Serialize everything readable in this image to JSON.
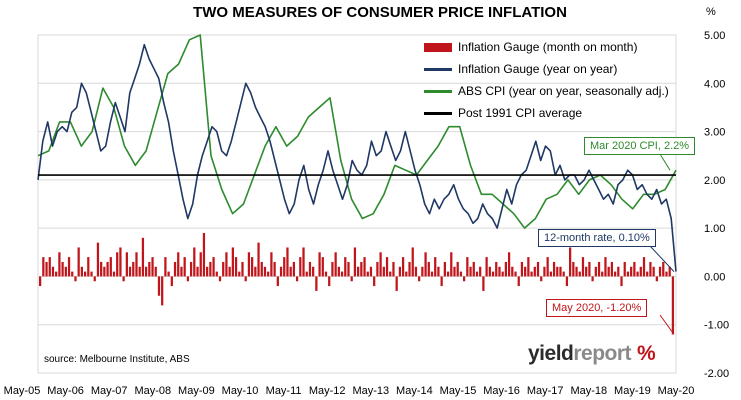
{
  "chart_data": {
    "type": "bar+line",
    "title": "TWO MEASURES OF CONSUMER PRICE INFLATION",
    "unit_label": "%",
    "source": "source: Melbourne Institute, ABS",
    "yaxis": {
      "side": "right",
      "ylim": [
        -2.0,
        5.0
      ],
      "ticks": [
        "5.00",
        "4.00",
        "3.00",
        "2.00",
        "1.00",
        "0.00",
        "-1.00",
        "-2.00"
      ]
    },
    "xaxis": {
      "tick_labels": [
        "May-05",
        "May-06",
        "May-07",
        "May-08",
        "May-09",
        "May-10",
        "May-11",
        "May-12",
        "May-13",
        "May-14",
        "May-15",
        "May-16",
        "May-17",
        "May-18",
        "May-19",
        "May-20"
      ]
    },
    "grid": "horizontal",
    "legend_position": "top-right",
    "colors": {
      "bars": "#c0151a",
      "gauge_yoy": "#1f3864",
      "abs_cpi": "#2e8b2e",
      "average": "#000000"
    },
    "series": [
      {
        "name": "Inflation Gauge (month on month)",
        "kind": "bar",
        "frequency": "monthly",
        "values": [
          -0.2,
          0.4,
          0.3,
          0.4,
          0.2,
          0.1,
          0.5,
          0.3,
          0.2,
          0.4,
          0.1,
          -0.1,
          0.6,
          0.2,
          0.1,
          0.4,
          0.1,
          -0.1,
          0.7,
          0.3,
          0.2,
          0.3,
          0.4,
          0.1,
          0.5,
          0.6,
          -0.1,
          0.5,
          0.2,
          0.3,
          0.5,
          0.2,
          0.8,
          0.2,
          0.3,
          0.4,
          0.2,
          -0.4,
          -0.6,
          0.4,
          0.1,
          -0.2,
          0.3,
          0.5,
          0.2,
          0.4,
          -0.1,
          0.3,
          0.6,
          0.2,
          0.5,
          0.9,
          0.2,
          0.3,
          0.4,
          0.1,
          -0.1,
          0.3,
          0.5,
          0.2,
          0.6,
          0.4,
          0.1,
          0.3,
          -0.1,
          0.5,
          0.4,
          0.2,
          0.7,
          0.3,
          0.2,
          0.1,
          0.5,
          0.3,
          -0.2,
          0.2,
          0.4,
          0.6,
          0.2,
          0.3,
          -0.1,
          0.4,
          0.6,
          0.1,
          0.3,
          0.2,
          -0.3,
          0.5,
          0.4,
          0.1,
          -0.2,
          0.3,
          0.5,
          0.2,
          0.1,
          0.4,
          0.3,
          -0.1,
          0.6,
          0.2,
          0.3,
          0.4,
          0.1,
          0.2,
          -0.2,
          0.3,
          0.5,
          0.2,
          0.4,
          0.1,
          0.3,
          -0.3,
          0.2,
          0.4,
          0.1,
          0.3,
          0.6,
          0.2,
          -0.1,
          0.2,
          0.5,
          0.3,
          0.1,
          0.4,
          0.2,
          -0.2,
          0.3,
          0.1,
          0.5,
          0.2,
          0.3,
          0.1,
          -0.1,
          0.4,
          0.2,
          0.3,
          0.1,
          0.2,
          -0.3,
          0.4,
          0.2,
          0.1,
          0.3,
          0.2,
          0.1,
          0.3,
          0.5,
          0.2,
          0.1,
          -0.2,
          0.3,
          0.2,
          0.4,
          0.1,
          0.2,
          0.3,
          -0.1,
          0.2,
          0.4,
          0.1,
          0.3,
          0.2,
          0.2,
          0.1,
          -0.2,
          0.6,
          0.3,
          0.2,
          0.1,
          0.4,
          0.2,
          0.3,
          -0.1,
          0.2,
          0.3,
          0.1,
          0.4,
          0.2,
          0.3,
          0.1,
          0.2,
          -0.2,
          0.3,
          0.1,
          0.2,
          0.3,
          0.1,
          0.2,
          0.4,
          0.1,
          0.3,
          0.2,
          -0.1,
          0.2,
          0.3,
          0.1,
          0.2,
          -1.2
        ]
      },
      {
        "name": "Inflation Gauge (year on year)",
        "kind": "line",
        "frequency": "monthly",
        "values": [
          2.0,
          2.8,
          3.2,
          2.7,
          3.0,
          3.1,
          3.0,
          3.4,
          3.5,
          4.0,
          3.8,
          3.4,
          3.0,
          2.6,
          2.7,
          3.2,
          3.6,
          3.3,
          3.0,
          3.8,
          4.1,
          4.4,
          4.8,
          4.5,
          4.3,
          4.1,
          3.6,
          3.2,
          2.6,
          2.1,
          1.6,
          1.2,
          1.5,
          2.1,
          2.5,
          2.8,
          3.1,
          3.0,
          2.6,
          2.5,
          2.8,
          3.2,
          3.6,
          4.0,
          3.8,
          3.5,
          3.3,
          3.1,
          2.8,
          2.4,
          2.0,
          1.6,
          1.3,
          1.5,
          2.0,
          2.3,
          1.8,
          1.5,
          1.9,
          2.2,
          2.6,
          2.2,
          1.9,
          1.6,
          1.9,
          2.4,
          2.2,
          2.1,
          2.3,
          2.8,
          2.5,
          2.6,
          3.0,
          2.7,
          2.4,
          2.6,
          3.0,
          2.6,
          2.2,
          1.9,
          1.5,
          1.3,
          1.6,
          1.4,
          1.6,
          1.7,
          1.9,
          1.6,
          1.4,
          1.3,
          1.1,
          1.2,
          1.5,
          1.3,
          1.2,
          1.0,
          1.4,
          1.8,
          1.5,
          1.9,
          2.1,
          2.2,
          2.5,
          2.8,
          2.4,
          2.7,
          2.6,
          2.1,
          2.3,
          2.0,
          2.1,
          2.1,
          1.9,
          2.0,
          2.2,
          2.0,
          1.8,
          1.6,
          1.7,
          1.5,
          1.9,
          2.0,
          2.2,
          2.1,
          1.8,
          1.9,
          1.7,
          1.6,
          1.8,
          1.5,
          1.6,
          1.2,
          0.1
        ]
      },
      {
        "name": "ABS CPI (year on year, seasonally adj.)",
        "kind": "line",
        "frequency": "quarterly",
        "values": [
          2.5,
          2.6,
          3.2,
          3.2,
          2.7,
          3.0,
          3.9,
          3.5,
          2.7,
          2.3,
          2.6,
          3.4,
          4.2,
          4.4,
          4.9,
          5.0,
          2.5,
          1.8,
          1.3,
          1.5,
          2.1,
          2.7,
          3.1,
          2.7,
          2.9,
          3.3,
          3.5,
          3.7,
          2.4,
          1.6,
          1.2,
          1.3,
          1.7,
          2.3,
          2.2,
          2.1,
          2.4,
          2.7,
          3.1,
          3.1,
          2.3,
          1.7,
          1.7,
          1.5,
          1.3,
          1.0,
          1.2,
          1.6,
          1.7,
          2.0,
          1.7,
          2.0,
          2.1,
          1.9,
          1.6,
          1.4,
          1.7,
          1.7,
          1.8,
          2.2
        ]
      },
      {
        "name": "Post 1991 CPI average",
        "kind": "line",
        "constant": 2.1
      }
    ],
    "annotations": [
      {
        "text": "Mar 2020 CPI, 2.2%",
        "color": "#2e8b2e"
      },
      {
        "text": "12-month rate, 0.10%",
        "color": "#1f3864"
      },
      {
        "text": "May 2020, -1.20%",
        "color": "#c0151a"
      }
    ]
  },
  "branding": {
    "logo_part1": "yield",
    "logo_part2": "report",
    "logo_part3": "%"
  }
}
